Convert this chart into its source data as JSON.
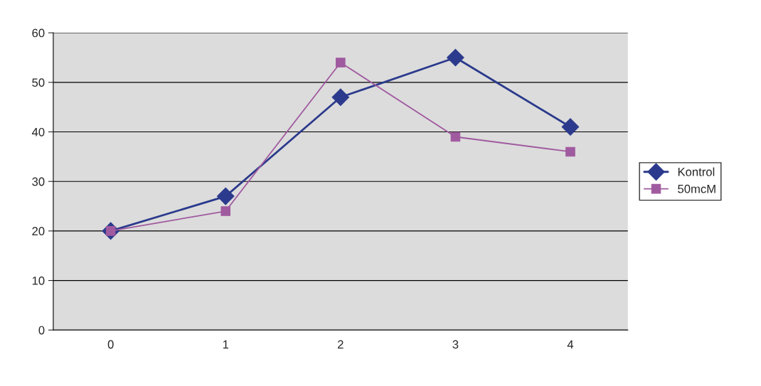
{
  "chart_data": {
    "type": "line",
    "categories": [
      "0",
      "1",
      "2",
      "3",
      "4"
    ],
    "series": [
      {
        "name": "Kontrol",
        "color": "#2b3a8c",
        "marker": "diamond",
        "values": [
          20,
          27,
          47,
          55,
          41
        ]
      },
      {
        "name": "50mcM",
        "color": "#a05a9f",
        "marker": "square",
        "values": [
          20,
          24,
          54,
          39,
          36
        ]
      }
    ],
    "ylim": [
      0,
      60
    ],
    "yticks": [
      0,
      10,
      20,
      30,
      40,
      50,
      60
    ],
    "grid": "y",
    "legend": "right"
  }
}
